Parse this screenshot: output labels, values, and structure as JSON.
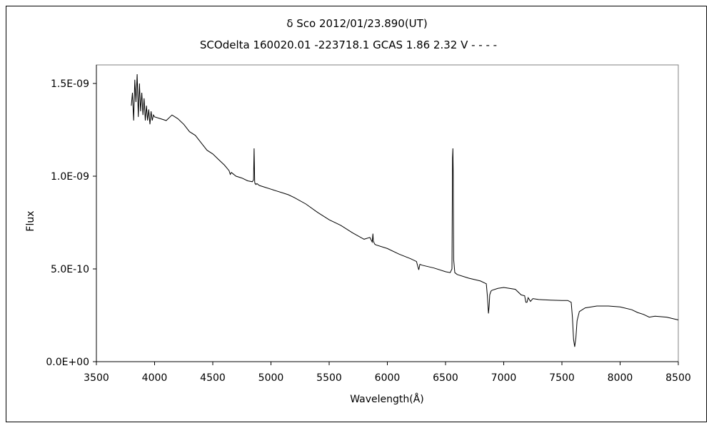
{
  "chart_data": {
    "type": "line",
    "title": "δ Sco    2012/01/23.890(UT)",
    "subtitle": "SCOdelta 160020.01 -223718.1 GCAS 1.86 2.32 V - - - -",
    "xlabel": "Wavelength(Å)",
    "ylabel": "Flux",
    "xlim": [
      3500,
      8500
    ],
    "ylim": [
      0,
      1.6e-09
    ],
    "xticks": [
      "3500",
      "4000",
      "4500",
      "5000",
      "5500",
      "6000",
      "6500",
      "7000",
      "7500",
      "8000",
      "8500"
    ],
    "xtick_values": [
      3500,
      4000,
      4500,
      5000,
      5500,
      6000,
      6500,
      7000,
      7500,
      8000,
      8500
    ],
    "yticks": [
      "0.0E+00",
      "5.0E-10",
      "1.0E-09",
      "1.5E-09"
    ],
    "ytick_values": [
      0,
      5e-10,
      1e-09,
      1.5e-09
    ],
    "grid": false,
    "line_color": "#000000",
    "series": [
      {
        "x": [
          3800,
          3810,
          3820,
          3830,
          3840,
          3850,
          3860,
          3870,
          3880,
          3890,
          3900,
          3910,
          3920,
          3930,
          3940,
          3950,
          3960,
          3970,
          3980,
          3990,
          4000,
          4050,
          4100,
          4150,
          4200,
          4250,
          4300,
          4350,
          4400,
          4450,
          4500,
          4550,
          4600,
          4640,
          4650,
          4660,
          4700,
          4750,
          4800,
          4840,
          4850,
          4855,
          4860,
          4863,
          4866,
          4870,
          4880,
          4900,
          4950,
          5000,
          5050,
          5100,
          5150,
          5200,
          5300,
          5400,
          5500,
          5600,
          5700,
          5800,
          5850,
          5870,
          5876,
          5880,
          5890,
          5900,
          6000,
          6100,
          6200,
          6250,
          6270,
          6280,
          6300,
          6400,
          6500,
          6540,
          6555,
          6560,
          6563,
          6566,
          6570,
          6580,
          6600,
          6700,
          6800,
          6850,
          6860,
          6869,
          6875,
          6880,
          6890,
          6900,
          6950,
          7000,
          7050,
          7100,
          7150,
          7180,
          7190,
          7200,
          7210,
          7230,
          7250,
          7270,
          7300,
          7400,
          7500,
          7550,
          7580,
          7590,
          7600,
          7610,
          7620,
          7630,
          7650,
          7700,
          7800,
          7900,
          8000,
          8100,
          8150,
          8200,
          8250,
          8300,
          8400,
          8500
        ],
        "values": [
          1.38e-09,
          1.45e-09,
          1.3e-09,
          1.52e-09,
          1.4e-09,
          1.55e-09,
          1.32e-09,
          1.5e-09,
          1.35e-09,
          1.45e-09,
          1.33e-09,
          1.42e-09,
          1.3e-09,
          1.38e-09,
          1.3e-09,
          1.36e-09,
          1.28e-09,
          1.35e-09,
          1.3e-09,
          1.33e-09,
          1.32e-09,
          1.31e-09,
          1.3e-09,
          1.33e-09,
          1.31e-09,
          1.28e-09,
          1.24e-09,
          1.22e-09,
          1.18e-09,
          1.14e-09,
          1.12e-09,
          1.09e-09,
          1.06e-09,
          1.03e-09,
          1.01e-09,
          1.02e-09,
          1e-09,
          9.9e-10,
          9.75e-10,
          9.7e-10,
          9.8e-10,
          1.15e-09,
          9.7e-10,
          9.6e-10,
          9.6e-10,
          9.55e-10,
          9.6e-10,
          9.5e-10,
          9.4e-10,
          9.3e-10,
          9.2e-10,
          9.1e-10,
          9e-10,
          8.85e-10,
          8.5e-10,
          8.05e-10,
          7.65e-10,
          7.35e-10,
          6.95e-10,
          6.6e-10,
          6.7e-10,
          6.45e-10,
          6.9e-10,
          6.5e-10,
          6.35e-10,
          6.3e-10,
          6.1e-10,
          5.8e-10,
          5.55e-10,
          5.4e-10,
          4.95e-10,
          5.25e-10,
          5.2e-10,
          5.05e-10,
          4.85e-10,
          4.8e-10,
          5e-10,
          1.1e-09,
          1.15e-09,
          1e-09,
          5.5e-10,
          4.8e-10,
          4.7e-10,
          4.5e-10,
          4.35e-10,
          4.2e-10,
          3.5e-10,
          2.6e-10,
          3e-10,
          3.6e-10,
          3.8e-10,
          3.85e-10,
          3.95e-10,
          4e-10,
          3.95e-10,
          3.9e-10,
          3.6e-10,
          3.55e-10,
          3.2e-10,
          3.2e-10,
          3.45e-10,
          3.25e-10,
          3.4e-10,
          3.38e-10,
          3.35e-10,
          3.32e-10,
          3.3e-10,
          3.3e-10,
          3.2e-10,
          2.4e-10,
          1.2e-10,
          8e-11,
          1.3e-10,
          2.2e-10,
          2.7e-10,
          2.9e-10,
          3e-10,
          3e-10,
          2.95e-10,
          2.8e-10,
          2.65e-10,
          2.55e-10,
          2.4e-10,
          2.45e-10,
          2.4e-10,
          2.25e-10
        ]
      }
    ]
  }
}
